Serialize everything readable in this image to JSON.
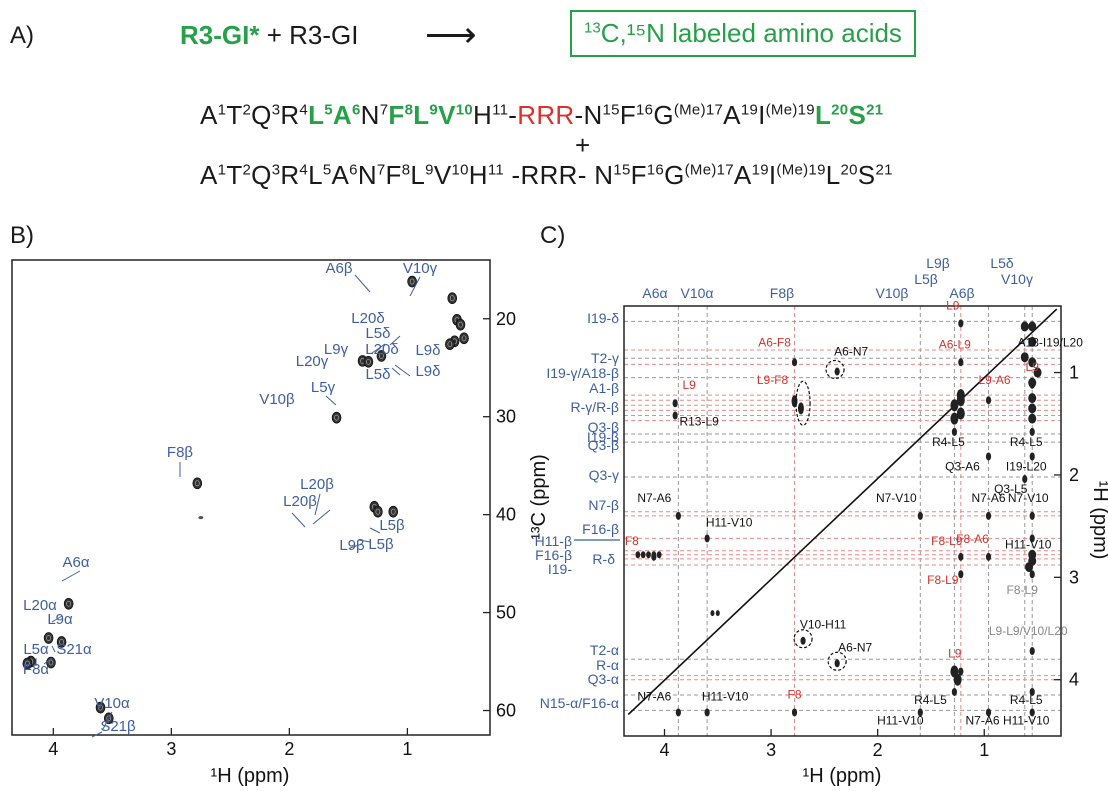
{
  "panelA": {
    "label": "A)",
    "reactant_labeled": "R3-GI*",
    "plus_reactant": "+ R3-GI",
    "arrow": "⟶",
    "box_text": "C,¹⁵N labeled amino acids",
    "box_sup13": "13",
    "seq_plus": "+"
  },
  "panelB": {
    "label": "B)",
    "x_label": "¹H (ppm)",
    "y_label": "¹³C (ppm)",
    "x_ticks": [
      "4",
      "3",
      "2",
      "1"
    ],
    "y_ticks": [
      "20",
      "30",
      "40",
      "50",
      "60"
    ]
  },
  "panelC": {
    "label": "C)",
    "x_label": "¹H (ppm)",
    "y_label": "¹H (ppm)",
    "x_ticks": [
      "4",
      "3",
      "2",
      "1"
    ],
    "y_ticks": [
      "1",
      "2",
      "3",
      "4"
    ]
  },
  "chart_data": [
    {
      "type": "scatter",
      "title": "",
      "xlabel": "¹H (ppm)",
      "ylabel": "¹³C (ppm)",
      "xlim": [
        4.35,
        0.3
      ],
      "ylim": [
        62.5,
        14
      ],
      "x_inverted": true,
      "y_inverted": true,
      "points": [
        {
          "label": "A6β",
          "x": 0.96,
          "y": 16.2
        },
        {
          "label": "V10γ",
          "x": 0.62,
          "y": 17.9
        },
        {
          "label": "L20δ",
          "x": 0.58,
          "y": 20.1
        },
        {
          "label": "L5δ",
          "x": 0.55,
          "y": 20.6
        },
        {
          "label": "L9δ",
          "x": 0.52,
          "y": 22.0
        },
        {
          "label": "L20δ",
          "x": 0.6,
          "y": 22.3
        },
        {
          "label": "L5δ",
          "x": 0.64,
          "y": 22.6
        },
        {
          "label": "L9γ",
          "x": 1.22,
          "y": 23.8
        },
        {
          "label": "L20γ",
          "x": 1.38,
          "y": 24.3
        },
        {
          "label": "L5γ",
          "x": 1.33,
          "y": 24.4
        },
        {
          "label": "V10β",
          "x": 1.6,
          "y": 30.1
        },
        {
          "label": "F8β",
          "x": 2.78,
          "y": 36.8
        },
        {
          "label": "L20β",
          "x": 1.28,
          "y": 39.2
        },
        {
          "label": "L5β",
          "x": 1.25,
          "y": 39.7
        },
        {
          "label": "L9β",
          "x": 1.12,
          "y": 39.7
        },
        {
          "label": "A6α",
          "x": 3.87,
          "y": 49.1
        },
        {
          "label": "L20α",
          "x": 4.04,
          "y": 52.6
        },
        {
          "label": "L9α",
          "x": 3.93,
          "y": 53.0
        },
        {
          "label": "L5α",
          "x": 4.19,
          "y": 55.0
        },
        {
          "label": "S21α",
          "x": 4.02,
          "y": 55.1
        },
        {
          "label": "F8α",
          "x": 4.22,
          "y": 55.2
        },
        {
          "label": "V10α",
          "x": 3.6,
          "y": 59.7
        },
        {
          "label": "S21β",
          "x": 3.53,
          "y": 60.8
        }
      ],
      "annotations": [
        "A6β",
        "V10γ",
        "L20δ",
        "L5δ",
        "L9δ",
        "L20δ",
        "L5δ",
        "L9δ",
        "L9γ",
        "L20γ",
        "L5γ",
        "V10β",
        "F8β",
        "L20β",
        "L20β",
        "L5β",
        "L5β",
        "L9β",
        "A6α",
        "L20α",
        "L9α",
        "L5α",
        "S21α",
        "F8α",
        "V10α",
        "S21β"
      ]
    },
    {
      "type": "scatter",
      "title": "",
      "xlabel": "¹H (ppm)",
      "ylabel": "¹H (ppm)",
      "xlim": [
        4.38,
        0.28
      ],
      "ylim": [
        0.35,
        4.55
      ],
      "x_inverted": true,
      "top_labels": [
        "A6α",
        "V10α",
        "F8β",
        "V10β",
        "L9β",
        "L5β",
        "A6β",
        "L5δ",
        "V10γ"
      ],
      "left_labels": [
        "I19-δ",
        "T2-γ",
        "I19-γ/A18-β",
        "A1-β",
        "R-γ/R-β",
        "I19-β",
        "Q3-β",
        "Q3-β",
        "Q3-γ",
        "N7-β",
        "F16-β",
        "H11-β",
        "F16-β",
        "R-δ",
        "I19-",
        "T2-α",
        "R-α",
        "Q3-α",
        "N15-α/F16-α"
      ],
      "cross_peaks": [
        {
          "label": "L9",
          "x": 1.22,
          "y": 0.5,
          "color": "red"
        },
        {
          "label": "A6-F8",
          "x": 2.78,
          "y": 0.88,
          "color": "red"
        },
        {
          "label": "A6-N7",
          "x": 2.38,
          "y": 0.97,
          "color": "black"
        },
        {
          "label": "A6-L9",
          "x": 1.22,
          "y": 0.88,
          "color": "red"
        },
        {
          "label": "A18-I19/L20",
          "x": 0.55,
          "y": 0.88,
          "color": "black"
        },
        {
          "label": "L9",
          "x": 0.55,
          "y": 1.1,
          "color": "red"
        },
        {
          "label": "L9-F8",
          "x": 2.78,
          "y": 1.25,
          "color": "red"
        },
        {
          "label": "L9-A6",
          "x": 0.96,
          "y": 1.25,
          "color": "red"
        },
        {
          "label": "L9",
          "x": 3.9,
          "y": 1.28,
          "color": "red"
        },
        {
          "label": "R13-L9",
          "x": 3.9,
          "y": 1.4,
          "color": "black"
        },
        {
          "label": "R4-L5",
          "x": 1.28,
          "y": 1.56,
          "color": "black"
        },
        {
          "label": "R4-L5",
          "x": 0.55,
          "y": 1.56,
          "color": "black"
        },
        {
          "label": "Q3-A6",
          "x": 0.96,
          "y": 1.8,
          "color": "black"
        },
        {
          "label": "I19-L20",
          "x": 0.55,
          "y": 1.8,
          "color": "black"
        },
        {
          "label": "Q3-L5",
          "x": 0.62,
          "y": 2.02,
          "color": "black"
        },
        {
          "label": "N7-A6",
          "x": 3.87,
          "y": 2.38,
          "color": "black"
        },
        {
          "label": "N7-V10",
          "x": 1.6,
          "y": 2.38,
          "color": "black"
        },
        {
          "label": "N7-A6",
          "x": 0.96,
          "y": 2.38,
          "color": "black"
        },
        {
          "label": "N7-V10",
          "x": 0.55,
          "y": 2.38,
          "color": "black"
        },
        {
          "label": "H11-V10",
          "x": 3.6,
          "y": 2.6,
          "color": "black"
        },
        {
          "label": "H11-V10",
          "x": 0.55,
          "y": 2.6,
          "color": "black"
        },
        {
          "label": "F8",
          "x": 4.1,
          "y": 2.78,
          "color": "red"
        },
        {
          "label": "F8-L9",
          "x": 1.22,
          "y": 2.78,
          "color": "red"
        },
        {
          "label": "F8-A6",
          "x": 0.96,
          "y": 2.78,
          "color": "red"
        },
        {
          "label": "F8-L9",
          "x": 1.22,
          "y": 2.95,
          "color": "red"
        },
        {
          "label": "F8-L9",
          "x": 0.55,
          "y": 2.95,
          "color": "gray"
        },
        {
          "label": "V10-H11",
          "x": 2.7,
          "y": 3.6,
          "color": "black"
        },
        {
          "label": "A6-N7",
          "x": 2.38,
          "y": 3.82,
          "color": "black"
        },
        {
          "label": "L9-L9/V10/L20",
          "x": 0.55,
          "y": 3.7,
          "color": "gray"
        },
        {
          "label": "L9",
          "x": 1.22,
          "y": 3.9,
          "color": "red"
        },
        {
          "label": "R4-L5",
          "x": 1.28,
          "y": 4.1,
          "color": "black"
        },
        {
          "label": "R4-L5",
          "x": 0.55,
          "y": 4.1,
          "color": "black"
        },
        {
          "label": "N7-A6",
          "x": 3.87,
          "y": 4.3,
          "color": "black"
        },
        {
          "label": "H11-V10",
          "x": 3.6,
          "y": 4.3,
          "color": "black"
        },
        {
          "label": "F8",
          "x": 2.78,
          "y": 4.3,
          "color": "red"
        },
        {
          "label": "H11-V10",
          "x": 1.6,
          "y": 4.3,
          "color": "black"
        },
        {
          "label": "N7-A6",
          "x": 0.96,
          "y": 4.3,
          "color": "black"
        },
        {
          "label": "H11-V10",
          "x": 0.55,
          "y": 4.3,
          "color": "black"
        }
      ]
    }
  ]
}
